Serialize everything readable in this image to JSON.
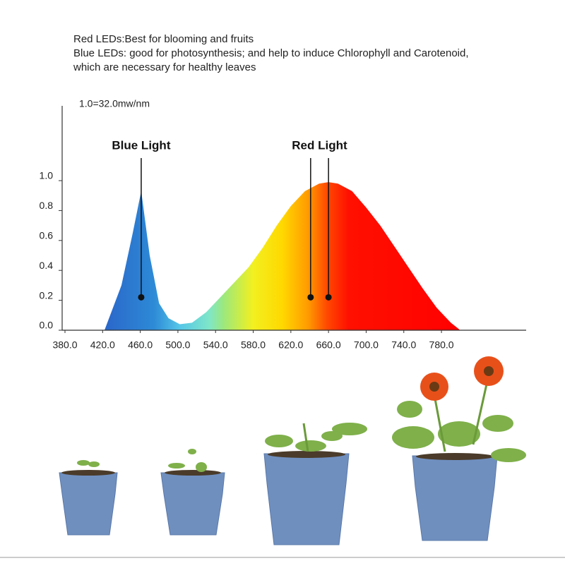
{
  "notes": [
    "Red LEDs:Best for blooming and fruits",
    "Blue LEDs: good for photosynthesis; and help to induce Chlorophyll and Carotenoid,",
    "which are necessary for healthy leaves"
  ],
  "chart_data": {
    "type": "area",
    "ylabel": "1.0=32.0mw/nm",
    "x": [
      422,
      440,
      452,
      461,
      470,
      480,
      490,
      502,
      515,
      530,
      545,
      560,
      575,
      590,
      605,
      620,
      635,
      650,
      660,
      670,
      685,
      700,
      715,
      730,
      745,
      760,
      775,
      790,
      800
    ],
    "values": [
      0,
      0.3,
      0.65,
      0.93,
      0.5,
      0.18,
      0.08,
      0.04,
      0.05,
      0.12,
      0.22,
      0.32,
      0.42,
      0.55,
      0.7,
      0.83,
      0.93,
      0.98,
      0.99,
      0.98,
      0.93,
      0.82,
      0.7,
      0.56,
      0.42,
      0.28,
      0.15,
      0.05,
      0
    ],
    "xlim": [
      377,
      870
    ],
    "ylim": [
      0,
      1.5
    ],
    "xticks": [
      {
        "value": 380,
        "label": "380.0"
      },
      {
        "value": 420,
        "label": "420.0"
      },
      {
        "value": 460,
        "label": "460.0"
      },
      {
        "value": 500,
        "label": "500.0"
      },
      {
        "value": 540,
        "label": "540.0"
      },
      {
        "value": 580,
        "label": "580.0"
      },
      {
        "value": 620,
        "label": "620.0"
      },
      {
        "value": 660,
        "label": "660.0"
      },
      {
        "value": 700,
        "label": "700.0"
      },
      {
        "value": 740,
        "label": "740.0"
      },
      {
        "value": 780,
        "label": "780.0"
      }
    ],
    "yticks": [
      {
        "value": 0,
        "label": "0.0"
      },
      {
        "value": 0.2,
        "label": "0.2"
      },
      {
        "value": 0.4,
        "label": "0.4"
      },
      {
        "value": 0.6,
        "label": "0.6"
      },
      {
        "value": 0.8,
        "label": "0.8"
      },
      {
        "value": 1,
        "label": "1.0"
      }
    ],
    "annotations": [
      {
        "text": "Blue Light",
        "x": [
          461
        ],
        "y": 0.22
      },
      {
        "text": "Red Light",
        "x": [
          641,
          660
        ],
        "y": 0.22
      }
    ]
  }
}
